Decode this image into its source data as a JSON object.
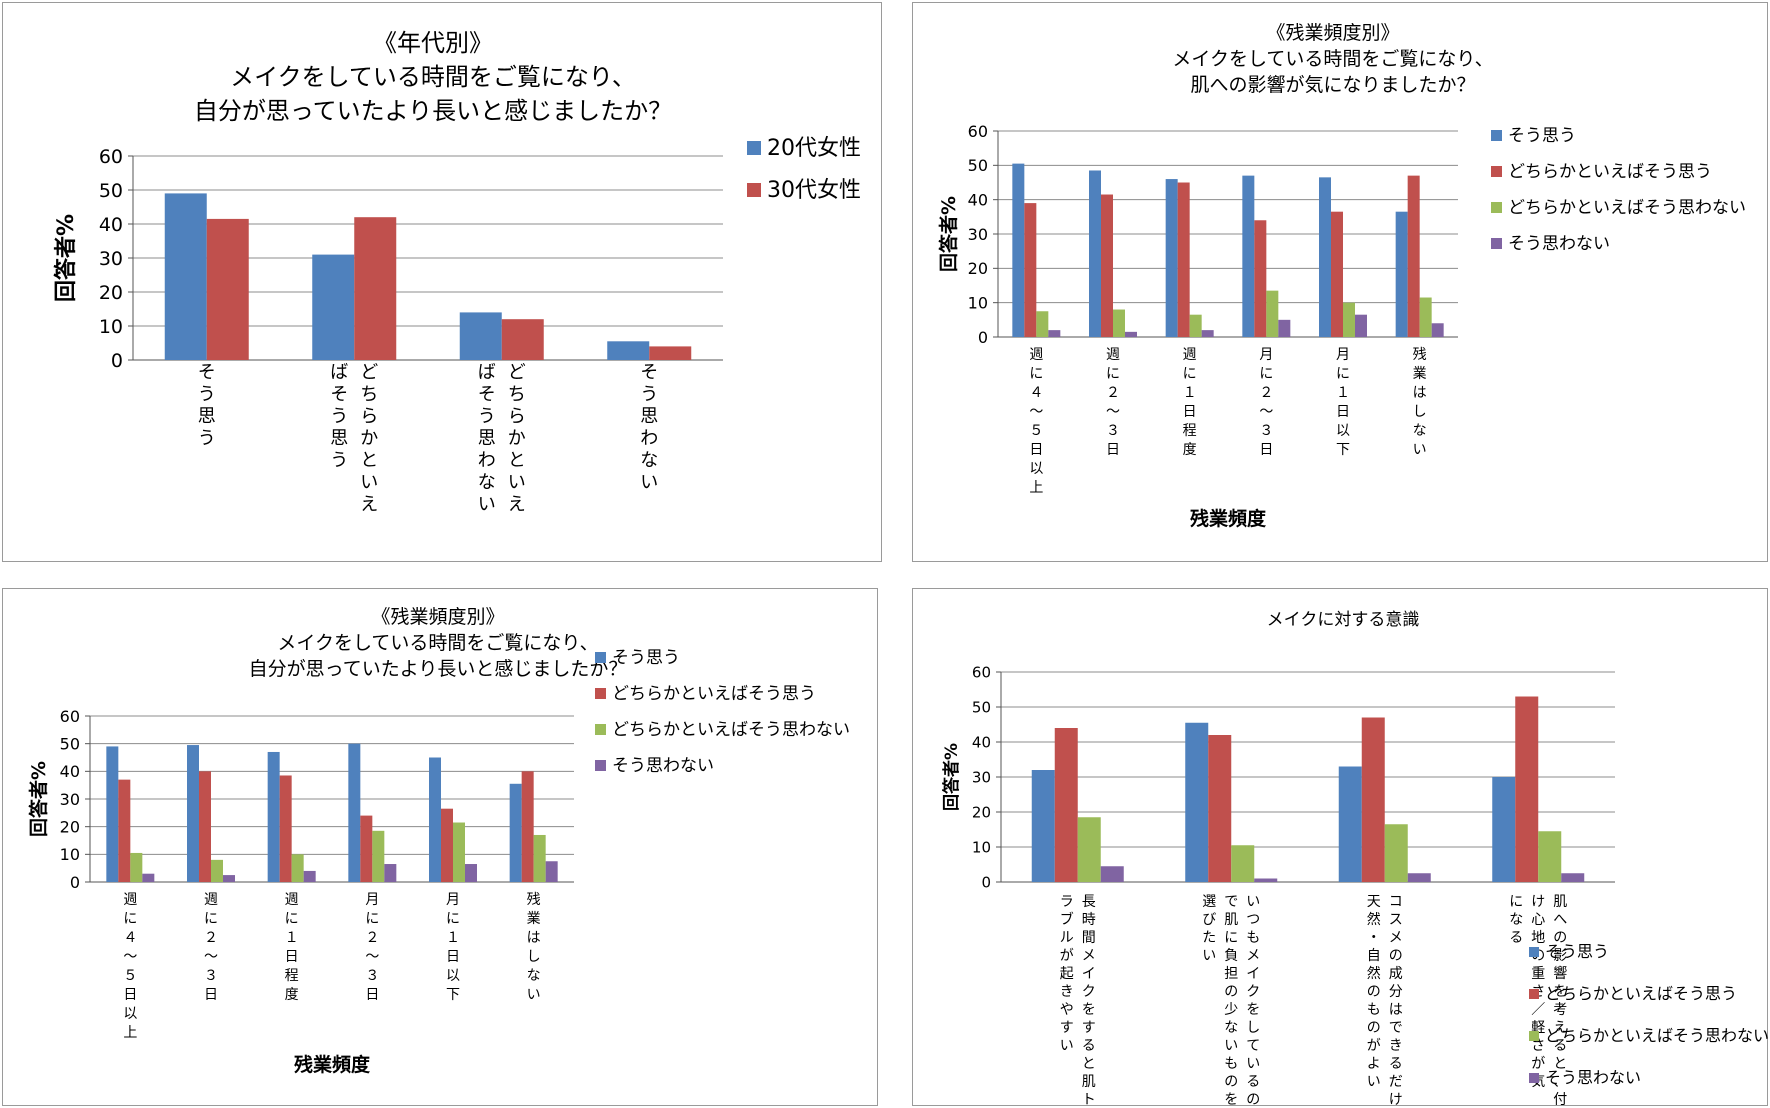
{
  "colors": {
    "blue": "#4F81BD",
    "red": "#C0504D",
    "green": "#9BBB59",
    "purple": "#8064A2",
    "grid": "#8c8c8c"
  },
  "chart_data": [
    {
      "type": "bar",
      "title": [
        "《年代別》",
        "メイクをしている時間をご覧になり、",
        "自分が思っていたより長いと感じましたか？"
      ],
      "ylabel": "回答者%",
      "xlabel": "",
      "ylim": [
        0,
        60
      ],
      "yticks": [
        "0",
        "10",
        "20",
        "30",
        "40",
        "50",
        "60"
      ],
      "categories": [
        [
          "そう思う"
        ],
        [
          "どちらかといえ",
          "ばそう思う"
        ],
        [
          "どちらかといえ",
          "ばそう思わない"
        ],
        [
          "そう思わない"
        ]
      ],
      "series": [
        {
          "name": "20代女性",
          "color": "#4F81BD",
          "values": [
            49,
            31,
            14,
            5.5
          ]
        },
        {
          "name": "30代女性",
          "color": "#C0504D",
          "values": [
            41.5,
            42,
            12,
            4
          ]
        }
      ],
      "grid": true,
      "legend": "right"
    },
    {
      "type": "bar",
      "title": [
        "《残業頻度別》",
        "メイクをしている時間をご覧になり、",
        "肌への影響が気になりましたか？"
      ],
      "ylabel": "回答者%",
      "xlabel": "残業頻度",
      "ylim": [
        0,
        60
      ],
      "yticks": [
        "0",
        "10",
        "20",
        "30",
        "40",
        "50",
        "60"
      ],
      "categories": [
        [
          "週に４～５日以上"
        ],
        [
          "週に２～３日"
        ],
        [
          "週に１日程度"
        ],
        [
          "月に２～３日"
        ],
        [
          "月に１日以下"
        ],
        [
          "残業はしない"
        ]
      ],
      "series": [
        {
          "name": "そう思う",
          "color": "#4F81BD",
          "values": [
            50.5,
            48.5,
            46,
            47,
            46.5,
            36.5
          ]
        },
        {
          "name": "どちらかといえばそう思う",
          "color": "#C0504D",
          "values": [
            39,
            41.5,
            45,
            34,
            36.5,
            47
          ]
        },
        {
          "name": "どちらかといえばそう思わない",
          "color": "#9BBB59",
          "values": [
            7.5,
            8,
            6.5,
            13.5,
            10,
            11.5
          ]
        },
        {
          "name": "そう思わない",
          "color": "#8064A2",
          "values": [
            2,
            1.5,
            2,
            5,
            6.5,
            4
          ]
        }
      ],
      "grid": true,
      "legend": "right"
    },
    {
      "type": "bar",
      "title": [
        "《残業頻度別》",
        "メイクをしている時間をご覧になり、",
        "自分が思っていたより長いと感じましたか？"
      ],
      "ylabel": "回答者%",
      "xlabel": "残業頻度",
      "ylim": [
        0,
        60
      ],
      "yticks": [
        "0",
        "10",
        "20",
        "30",
        "40",
        "50",
        "60"
      ],
      "categories": [
        [
          "週に４～５日以上"
        ],
        [
          "週に２～３日"
        ],
        [
          "週に１日程度"
        ],
        [
          "月に２～３日"
        ],
        [
          "月に１日以下"
        ],
        [
          "残業はしない"
        ]
      ],
      "series": [
        {
          "name": "そう思う",
          "color": "#4F81BD",
          "values": [
            49,
            49.5,
            47,
            50,
            45,
            35.5
          ]
        },
        {
          "name": "どちらかといえばそう思う",
          "color": "#C0504D",
          "values": [
            37,
            40,
            38.5,
            24,
            26.5,
            40
          ]
        },
        {
          "name": "どちらかといえばそう思わない",
          "color": "#9BBB59",
          "values": [
            10.5,
            8,
            10,
            18.5,
            21.5,
            17
          ]
        },
        {
          "name": "そう思わない",
          "color": "#8064A2",
          "values": [
            3,
            2.5,
            4,
            6.5,
            6.5,
            7.5
          ]
        }
      ],
      "grid": true,
      "legend": "right"
    },
    {
      "type": "bar",
      "title": [
        "メイクに対する意識"
      ],
      "ylabel": "回答者%",
      "xlabel": "",
      "ylim": [
        0,
        60
      ],
      "yticks": [
        "0",
        "10",
        "20",
        "30",
        "40",
        "50",
        "60"
      ],
      "categories": [
        [
          "長時間メイクをすると肌ト",
          "ラブルが起きやすい"
        ],
        [
          "いつもメイクをしているの",
          "で肌に負担の少ないものを",
          "選びたい"
        ],
        [
          "コスメの成分はできるだけ",
          "天然・自然のものがよい"
        ],
        [
          "肌への影響を考えると、付",
          "け心地の重さ／軽さが気",
          "になる"
        ]
      ],
      "series": [
        {
          "name": "そう思う",
          "color": "#4F81BD",
          "values": [
            32,
            45.5,
            33,
            30
          ]
        },
        {
          "name": "どちらかといえばそう思う",
          "color": "#C0504D",
          "values": [
            44,
            42,
            47,
            53
          ]
        },
        {
          "name": "どちらかといえばそう思わない",
          "color": "#9BBB59",
          "values": [
            18.5,
            10.5,
            16.5,
            14.5
          ]
        },
        {
          "name": "そう思わない",
          "color": "#8064A2",
          "values": [
            4.5,
            1,
            2.5,
            2.5
          ]
        }
      ],
      "grid": true,
      "legend": "bottom-right"
    }
  ]
}
